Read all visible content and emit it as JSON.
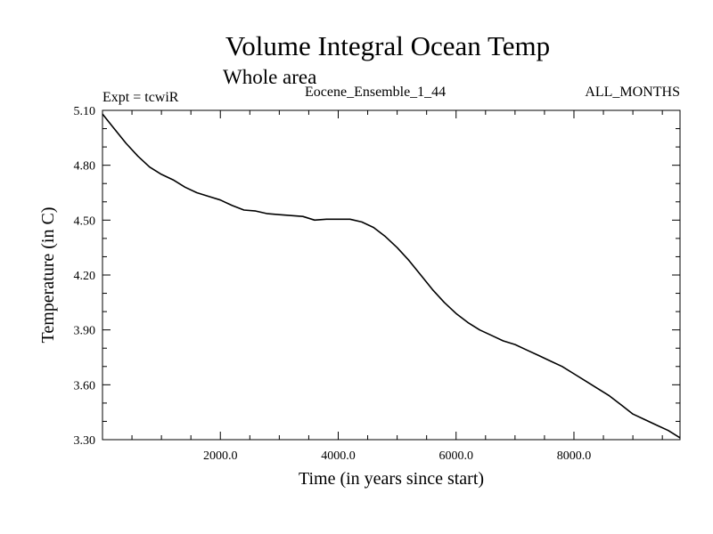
{
  "chart_data": {
    "type": "line",
    "title": "Volume Integral Ocean Temp",
    "subtitle": "Whole area",
    "annotations": {
      "left": "Expt = tcwiR",
      "center": "Eocene_Ensemble_1_44",
      "right": "ALL_MONTHS"
    },
    "xlabel": "Time (in years since start)",
    "ylabel": "Temperature (in C)",
    "xlim": [
      0,
      9800
    ],
    "ylim": [
      3.3,
      5.1
    ],
    "x_ticks": [
      2000,
      4000,
      6000,
      8000
    ],
    "x_tick_labels": [
      "2000.0",
      "4000.0",
      "6000.0",
      "8000.0"
    ],
    "y_ticks": [
      3.3,
      3.6,
      3.9,
      4.2,
      4.5,
      4.8,
      5.1
    ],
    "y_tick_labels": [
      "3.30",
      "3.60",
      "3.90",
      "4.20",
      "4.50",
      "4.80",
      "5.10"
    ],
    "grid": false,
    "series": [
      {
        "color": "#000000",
        "x": [
          0,
          200,
          400,
          600,
          800,
          1000,
          1200,
          1400,
          1600,
          1800,
          2000,
          2200,
          2400,
          2600,
          2800,
          3000,
          3200,
          3400,
          3600,
          3800,
          4000,
          4200,
          4400,
          4600,
          4800,
          5000,
          5200,
          5400,
          5600,
          5800,
          6000,
          6200,
          6400,
          6600,
          6800,
          7000,
          7200,
          7400,
          7600,
          7800,
          8000,
          8200,
          8400,
          8600,
          8800,
          9000,
          9200,
          9400,
          9600,
          9800
        ],
        "y": [
          5.08,
          5.0,
          4.92,
          4.85,
          4.79,
          4.75,
          4.72,
          4.68,
          4.65,
          4.63,
          4.61,
          4.58,
          4.555,
          4.55,
          4.535,
          4.53,
          4.525,
          4.52,
          4.5,
          4.505,
          4.505,
          4.505,
          4.49,
          4.46,
          4.41,
          4.35,
          4.28,
          4.2,
          4.12,
          4.05,
          3.99,
          3.94,
          3.9,
          3.87,
          3.84,
          3.82,
          3.79,
          3.76,
          3.73,
          3.7,
          3.66,
          3.62,
          3.58,
          3.54,
          3.49,
          3.44,
          3.41,
          3.38,
          3.35,
          3.31
        ]
      }
    ]
  }
}
